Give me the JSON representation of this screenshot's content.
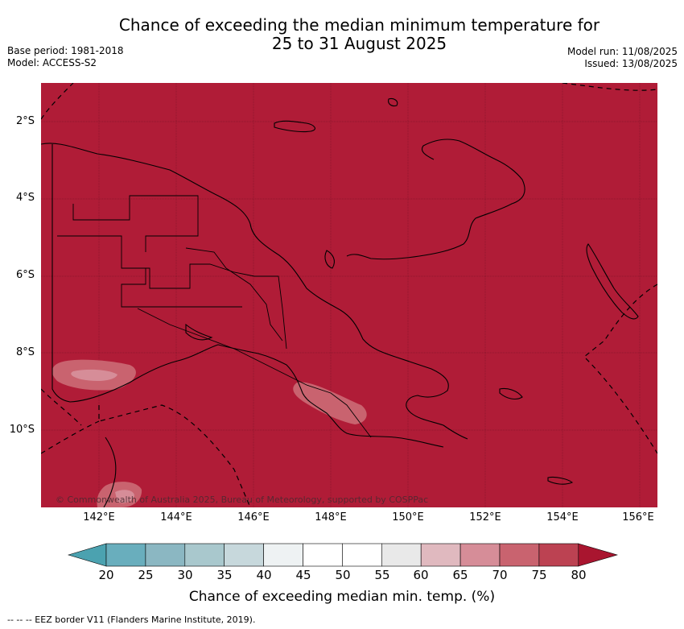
{
  "title": {
    "line1": "Chance of exceeding the median minimum temperature for",
    "line2": "25 to 31 August 2025"
  },
  "meta_left": {
    "base_period": "Base period: 1981-2018",
    "model": "Model: ACCESS-S2"
  },
  "meta_right": {
    "model_run": "Model run: 11/08/2025",
    "issued": "Issued: 13/08/2025"
  },
  "map": {
    "fill_color": "#b01c37",
    "region": "Papua New Guinea",
    "x_ticks": [
      "142°E",
      "144°E",
      "146°E",
      "148°E",
      "150°E",
      "152°E",
      "154°E",
      "156°E"
    ],
    "y_ticks": [
      "2°S",
      "4°S",
      "6°S",
      "8°S",
      "10°S"
    ],
    "copyright": "© Commonwealth of Australia 2025, Bureau of Meteorology, supported by COSPPac"
  },
  "colorbar": {
    "title": "Chance of exceeding median min. temp. (%)",
    "labels": [
      "20",
      "25",
      "30",
      "35",
      "40",
      "45",
      "50",
      "55",
      "60",
      "65",
      "70",
      "75",
      "80"
    ],
    "colors": [
      "#4ba2b0",
      "#69aebd",
      "#8bb7c2",
      "#a9c8cd",
      "#c7d8dc",
      "#eef2f3",
      "#ffffff",
      "#ffffff",
      "#e9e9e9",
      "#e0b9bf",
      "#d68d98",
      "#c9636f",
      "#bc4252",
      "#a9152f"
    ]
  },
  "footnote": "-- -- -- EEZ border V11 (Flanders Marine Institute, 2019)."
}
